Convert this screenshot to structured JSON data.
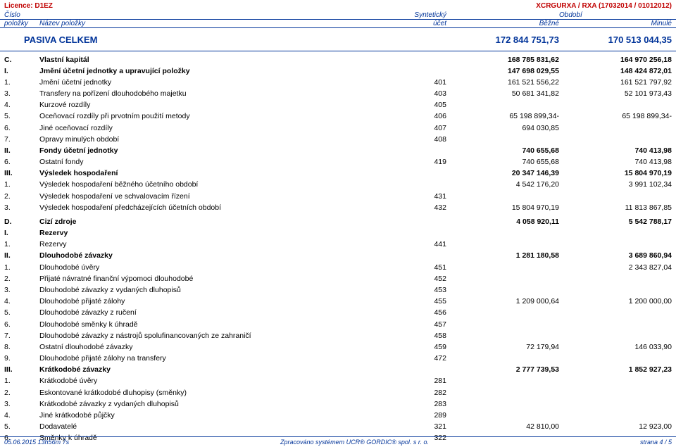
{
  "topbar": {
    "left": "Licence: D1EZ",
    "right": "XCRGURXA / RXA (17032014 / 01012012)"
  },
  "header": {
    "r1": {
      "num": "Číslo",
      "acct": "Syntetický",
      "period": "Období"
    },
    "r2": {
      "num": "položky",
      "name": "Název položky",
      "acct": "účet",
      "cur": "Běžné",
      "prev": "Minulé"
    }
  },
  "rows": [
    {
      "style": "total",
      "name": "PASIVA CELKEM",
      "cur": "172 844 751,73",
      "prev": "170 513 044,35"
    },
    {
      "style": "bold",
      "num": "C.",
      "name": "Vlastní kapitál",
      "cur": "168 785 831,62",
      "prev": "164 970 256,18"
    },
    {
      "style": "bold",
      "num": "I.",
      "name": "Jmění účetní jednotky a upravující položky",
      "cur": "147 698 029,55",
      "prev": "148 424 872,01"
    },
    {
      "num": "1.",
      "name": "Jmění účetní jednotky",
      "acct": "401",
      "cur": "161 521 556,22",
      "prev": "161 521 797,92"
    },
    {
      "num": "3.",
      "name": "Transfery na pořízení dlouhodobého majetku",
      "acct": "403",
      "cur": "50 681 341,82",
      "prev": "52 101 973,43"
    },
    {
      "num": "4.",
      "name": "Kurzové rozdíly",
      "acct": "405"
    },
    {
      "num": "5.",
      "name": "Oceňovací rozdíly při prvotním použití metody",
      "acct": "406",
      "cur": "65 198 899,34-",
      "prev": "65 198 899,34-"
    },
    {
      "num": "6.",
      "name": "Jiné oceňovací rozdíly",
      "acct": "407",
      "cur": "694 030,85"
    },
    {
      "num": "7.",
      "name": "Opravy minulých období",
      "acct": "408"
    },
    {
      "style": "bold",
      "num": "II.",
      "name": "Fondy účetní jednotky",
      "cur": "740 655,68",
      "prev": "740 413,98"
    },
    {
      "num": "6.",
      "name": "Ostatní fondy",
      "acct": "419",
      "cur": "740 655,68",
      "prev": "740 413,98"
    },
    {
      "style": "bold",
      "num": "III.",
      "name": "Výsledek hospodaření",
      "cur": "20 347 146,39",
      "prev": "15 804 970,19"
    },
    {
      "num": "1.",
      "name": "Výsledek hospodaření běžného účetního období",
      "cur": "4 542 176,20",
      "prev": "3 991 102,34"
    },
    {
      "num": "2.",
      "name": "Výsledek hospodaření ve schvalovacím řízení",
      "acct": "431"
    },
    {
      "num": "3.",
      "name": "Výsledek hospodaření předcházejících účetních období",
      "acct": "432",
      "cur": "15 804 970,19",
      "prev": "11 813 867,85"
    },
    {
      "style": "spacer"
    },
    {
      "style": "bold",
      "num": "D.",
      "name": "Cizí zdroje",
      "cur": "4 058 920,11",
      "prev": "5 542 788,17"
    },
    {
      "style": "bold",
      "num": "I.",
      "name": "Rezervy"
    },
    {
      "num": "1.",
      "name": "Rezervy",
      "acct": "441"
    },
    {
      "style": "bold",
      "num": "II.",
      "name": "Dlouhodobé závazky",
      "cur": "1 281 180,58",
      "prev": "3 689 860,94"
    },
    {
      "num": "1.",
      "name": "Dlouhodobé úvěry",
      "acct": "451",
      "prev": "2 343 827,04"
    },
    {
      "num": "2.",
      "name": "Přijaté návratné finanční výpomoci dlouhodobé",
      "acct": "452"
    },
    {
      "num": "3.",
      "name": "Dlouhodobé závazky z vydaných dluhopisů",
      "acct": "453"
    },
    {
      "num": "4.",
      "name": "Dlouhodobé přijaté zálohy",
      "acct": "455",
      "cur": "1 209 000,64",
      "prev": "1 200 000,00"
    },
    {
      "num": "5.",
      "name": "Dlouhodobé závazky z ručení",
      "acct": "456"
    },
    {
      "num": "6.",
      "name": "Dlouhodobé směnky k úhradě",
      "acct": "457"
    },
    {
      "num": "7.",
      "name": "Dlouhodobé závazky z nástrojů spolufinancovaných ze zahraničí",
      "acct": "458"
    },
    {
      "num": "8.",
      "name": "Ostatní dlouhodobé závazky",
      "acct": "459",
      "cur": "72 179,94",
      "prev": "146 033,90"
    },
    {
      "num": "9.",
      "name": "Dlouhodobé přijaté zálohy na transfery",
      "acct": "472"
    },
    {
      "style": "bold",
      "num": "III.",
      "name": "Krátkodobé závazky",
      "cur": "2 777 739,53",
      "prev": "1 852 927,23"
    },
    {
      "num": "1.",
      "name": "Krátkodobé úvěry",
      "acct": "281"
    },
    {
      "num": "2.",
      "name": "Eskontované krátkodobé dluhopisy (směnky)",
      "acct": "282"
    },
    {
      "num": "3.",
      "name": "Krátkodobé závazky z vydaných dluhopisů",
      "acct": "283"
    },
    {
      "num": "4.",
      "name": "Jiné krátkodobé půjčky",
      "acct": "289"
    },
    {
      "num": "5.",
      "name": "Dodavatelé",
      "acct": "321",
      "cur": "42 810,00",
      "prev": "12 923,00"
    },
    {
      "num": "6.",
      "name": "Směnky k úhradě",
      "acct": "322"
    }
  ],
  "footer": {
    "left": "05.06.2015 13h56m 7s",
    "center": "Zpracováno systémem UCR® GORDIC® spol. s r. o.",
    "right": "strana 4 / 5"
  }
}
